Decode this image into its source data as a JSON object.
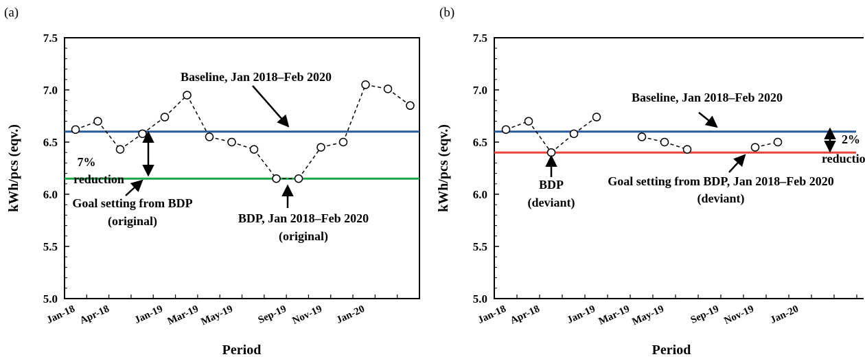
{
  "chart_data": [
    {
      "type": "line",
      "panel_label": "(a)",
      "xlabel": "Period",
      "ylabel": "kWh/pcs  (eqv.)",
      "ylim": [
        5.0,
        7.5
      ],
      "yticks": [
        "5.0",
        "5.5",
        "6.0",
        "6.5",
        "7.0",
        "7.5"
      ],
      "x_tick_labels": [
        "Jan-18",
        "Apr-18",
        "Jan-19",
        "Mar-19",
        "May-19",
        "Sep-19",
        "Nov-19",
        "Jan-20"
      ],
      "series": [
        {
          "type": "scatter-dashed",
          "style": "open circles, dashed line",
          "color": "#000000",
          "values": [
            6.62,
            6.7,
            6.43,
            6.58,
            6.74,
            6.95,
            6.55,
            6.5,
            6.43,
            6.15,
            6.15,
            6.45,
            6.5,
            7.05,
            7.01,
            6.85
          ]
        },
        {
          "type": "hline",
          "value": 6.6,
          "color": "#2a5a9b"
        },
        {
          "type": "hline",
          "value": 6.15,
          "color": "#1aa84a"
        }
      ],
      "annotations": {
        "baseline": "Baseline, Jan 2018–Feb 2020",
        "reduction_pct": "7%",
        "reduction_word": "reduction",
        "goal_line1": "Goal setting from BDP",
        "goal_line2": "(original)",
        "bdp_line1": "BDP, Jan 2018–Feb 2020",
        "bdp_line2": "(original)"
      }
    },
    {
      "type": "line",
      "panel_label": "(b)",
      "xlabel": "Period",
      "ylabel": "kWh/pcs  (eqv.)",
      "ylim": [
        5.0,
        7.5
      ],
      "yticks": [
        "5.0",
        "5.5",
        "6.0",
        "6.5",
        "7.0",
        "7.5"
      ],
      "x_tick_labels": [
        "Jan-18",
        "Apr-18",
        "Jan-19",
        "Mar-19",
        "May-19",
        "Sep-19",
        "Nov-19",
        "Jan-20"
      ],
      "series": [
        {
          "type": "scatter-dashed",
          "style": "open circles, dashed line, with gaps",
          "color": "#000000",
          "values": [
            6.62,
            6.7,
            6.4,
            6.58,
            6.74,
            null,
            6.55,
            6.5,
            6.43,
            null,
            null,
            6.45,
            6.5,
            null,
            null,
            null
          ]
        },
        {
          "type": "hline",
          "value": 6.6,
          "color": "#2a5a9b"
        },
        {
          "type": "hline",
          "value": 6.4,
          "color": "#e8453c"
        }
      ],
      "annotations": {
        "baseline": "Baseline, Jan 2018–Feb 2020",
        "reduction_pct": "2%",
        "reduction_word": "reduction",
        "bdp_line1": "BDP",
        "bdp_line2": "(deviant)",
        "goal_line1": "Goal setting from BDP, Jan 2018–Feb 2020",
        "goal_line2": "(deviant)"
      }
    }
  ]
}
